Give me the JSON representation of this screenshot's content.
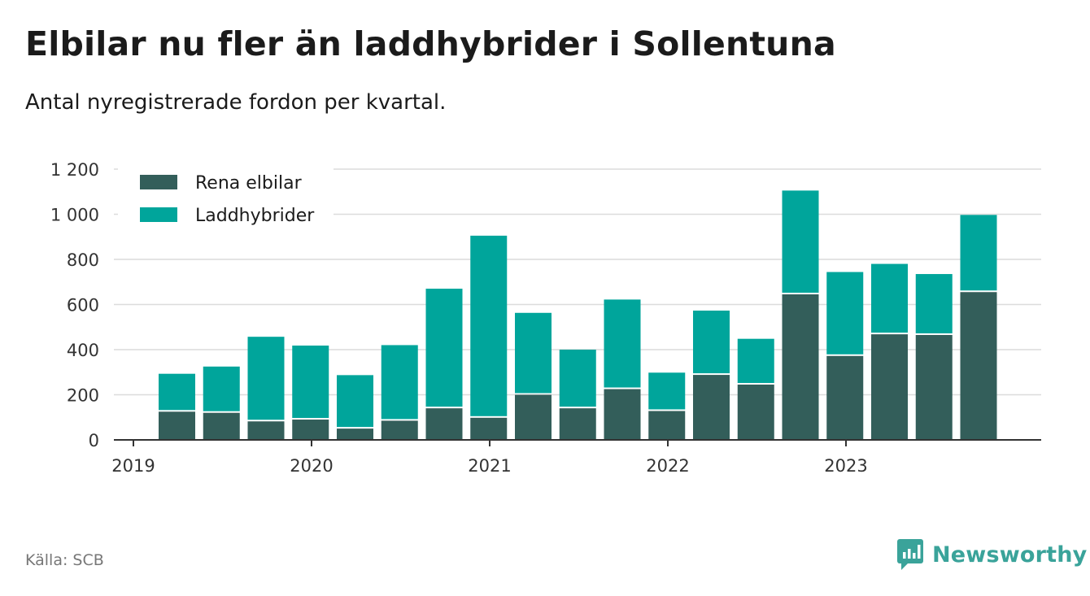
{
  "header": {
    "title": "Elbilar nu fler än laddhybrider i Sollentuna",
    "subtitle": "Antal nyregistrerade fordon per kvartal."
  },
  "footer": {
    "source": "Källa: SCB",
    "brand": "Newsworthy"
  },
  "colors": {
    "rena_elbilar": "#335e5a",
    "laddhybrider": "#00a59b",
    "grid": "#dcdcdc",
    "axis": "#333333",
    "brand": "#3aa39a"
  },
  "chart_data": {
    "type": "bar",
    "stacked": true,
    "categories": [
      "2019 Q2",
      "2019 Q3",
      "2019 Q4",
      "2020 Q1",
      "2020 Q2",
      "2020 Q3",
      "2020 Q4",
      "2021 Q1",
      "2021 Q2",
      "2021 Q3",
      "2021 Q4",
      "2022 Q1",
      "2022 Q2",
      "2022 Q3",
      "2022 Q4",
      "2023 Q1",
      "2023 Q2",
      "2023 Q3",
      "2023 Q4"
    ],
    "series": [
      {
        "name": "Rena elbilar",
        "values": [
          125,
          120,
          82,
          90,
          50,
          85,
          140,
          98,
          200,
          140,
          225,
          128,
          288,
          245,
          645,
          372,
          468,
          465,
          655
        ]
      },
      {
        "name": "Laddhybrider",
        "values": [
          168,
          205,
          375,
          328,
          237,
          335,
          530,
          807,
          363,
          260,
          397,
          170,
          285,
          203,
          460,
          372,
          312,
          270,
          342
        ]
      }
    ],
    "xaxis": {
      "ticks": [
        "2019",
        "2020",
        "2021",
        "2022",
        "2023"
      ]
    },
    "yaxis": {
      "ticks": [
        "0",
        "200",
        "400",
        "600",
        "800",
        "1 000",
        "1 200"
      ],
      "ylim": [
        0,
        1200
      ]
    },
    "legend": "top-left",
    "grid": true
  }
}
